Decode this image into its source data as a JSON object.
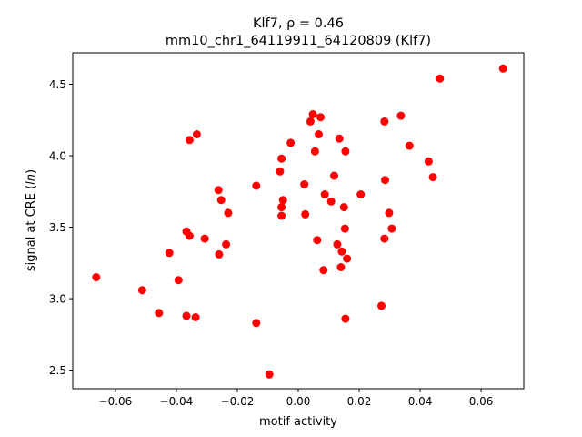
{
  "chart_data": {
    "type": "scatter",
    "title_line1": "Klf7, ρ = 0.46",
    "title_line2": "mm10_chr1_64119911_64120809 (Klf7)",
    "xlabel": "motif activity",
    "ylabel_prefix": "signal at CRE (",
    "ylabel_italic": "ln",
    "ylabel_suffix": ")",
    "xlim": [
      -0.074,
      0.074
    ],
    "ylim": [
      2.37,
      4.72
    ],
    "xticks": [
      -0.06,
      -0.04,
      -0.02,
      0.0,
      0.02,
      0.04,
      0.06
    ],
    "xtick_labels": [
      "−0.06",
      "−0.04",
      "−0.02",
      "0.00",
      "0.02",
      "0.04",
      "0.06"
    ],
    "yticks": [
      2.5,
      3.0,
      3.5,
      4.0,
      4.5
    ],
    "ytick_labels": [
      "2.5",
      "3.0",
      "3.5",
      "4.0",
      "4.5"
    ],
    "grid": false,
    "marker_color": "#ff0000",
    "points": [
      [
        -0.0663,
        3.15
      ],
      [
        -0.0512,
        3.06
      ],
      [
        -0.0457,
        2.9
      ],
      [
        -0.0423,
        3.32
      ],
      [
        -0.0393,
        3.13
      ],
      [
        -0.0367,
        3.47
      ],
      [
        -0.0367,
        2.88
      ],
      [
        -0.0357,
        3.44
      ],
      [
        -0.0357,
        4.11
      ],
      [
        -0.0337,
        2.87
      ],
      [
        -0.0333,
        4.15
      ],
      [
        -0.0307,
        3.42
      ],
      [
        -0.0262,
        3.76
      ],
      [
        -0.026,
        3.31
      ],
      [
        -0.0253,
        3.69
      ],
      [
        -0.0237,
        3.38
      ],
      [
        -0.023,
        3.6
      ],
      [
        -0.0138,
        3.79
      ],
      [
        -0.0138,
        2.83
      ],
      [
        -0.0095,
        2.47
      ],
      [
        -0.006,
        3.89
      ],
      [
        -0.0055,
        3.98
      ],
      [
        -0.0055,
        3.64
      ],
      [
        -0.0055,
        3.58
      ],
      [
        -0.005,
        3.69
      ],
      [
        -0.0025,
        4.09
      ],
      [
        0.002,
        3.8
      ],
      [
        0.0023,
        3.59
      ],
      [
        0.004,
        4.24
      ],
      [
        0.0048,
        4.29
      ],
      [
        0.0055,
        4.03
      ],
      [
        0.0062,
        3.41
      ],
      [
        0.0067,
        4.15
      ],
      [
        0.0073,
        4.27
      ],
      [
        0.0083,
        3.2
      ],
      [
        0.0087,
        3.73
      ],
      [
        0.0108,
        3.68
      ],
      [
        0.0118,
        3.86
      ],
      [
        0.0128,
        3.38
      ],
      [
        0.0135,
        4.12
      ],
      [
        0.014,
        3.22
      ],
      [
        0.0143,
        3.33
      ],
      [
        0.015,
        3.64
      ],
      [
        0.0153,
        3.49
      ],
      [
        0.0155,
        4.03
      ],
      [
        0.0155,
        2.86
      ],
      [
        0.016,
        3.28
      ],
      [
        0.0205,
        3.73
      ],
      [
        0.0273,
        2.95
      ],
      [
        0.0283,
        4.24
      ],
      [
        0.0283,
        3.42
      ],
      [
        0.0285,
        3.83
      ],
      [
        0.0298,
        3.6
      ],
      [
        0.0307,
        3.49
      ],
      [
        0.0337,
        4.28
      ],
      [
        0.0365,
        4.07
      ],
      [
        0.0428,
        3.96
      ],
      [
        0.0442,
        3.85
      ],
      [
        0.0465,
        4.54
      ],
      [
        0.0672,
        4.61
      ]
    ]
  }
}
